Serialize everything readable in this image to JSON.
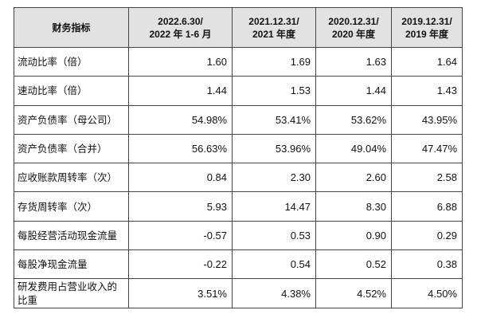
{
  "table": {
    "headers": [
      {
        "line1": "财务指标",
        "line2": ""
      },
      {
        "line1": "2022.6.30/",
        "line2": "2022 年 1-6 月"
      },
      {
        "line1": "2021.12.31/",
        "line2": "2021 年度"
      },
      {
        "line1": "2020.12.31/",
        "line2": "2020 年度"
      },
      {
        "line1": "2019.12.31/",
        "line2": "2019 年度"
      }
    ],
    "rows": [
      {
        "label": "流动比率（倍）",
        "values": [
          "1.60",
          "1.69",
          "1.63",
          "1.64"
        ]
      },
      {
        "label": "速动比率（倍）",
        "values": [
          "1.44",
          "1.53",
          "1.44",
          "1.43"
        ]
      },
      {
        "label": "资产负债率（母公司）",
        "values": [
          "54.98%",
          "53.41%",
          "53.62%",
          "43.95%"
        ]
      },
      {
        "label": "资产负债率（合并）",
        "values": [
          "56.63%",
          "53.96%",
          "49.04%",
          "47.47%"
        ]
      },
      {
        "label": "应收账款周转率（次）",
        "values": [
          "0.84",
          "2.30",
          "2.60",
          "2.58"
        ]
      },
      {
        "label": "存货周转率（次）",
        "values": [
          "5.93",
          "14.47",
          "8.30",
          "6.88"
        ]
      },
      {
        "label": "每股经营活动现金流量",
        "values": [
          "-0.57",
          "0.53",
          "0.90",
          "0.29"
        ]
      },
      {
        "label": "每股净现金流量",
        "values": [
          "-0.22",
          "0.54",
          "0.52",
          "0.38"
        ]
      },
      {
        "label": "研发费用占营业收入的比重",
        "values": [
          "3.51%",
          "4.38%",
          "4.52%",
          "4.50%"
        ]
      }
    ]
  },
  "colors": {
    "header_bg": "#e2e2e2",
    "border": "#444444",
    "text": "#111111"
  }
}
